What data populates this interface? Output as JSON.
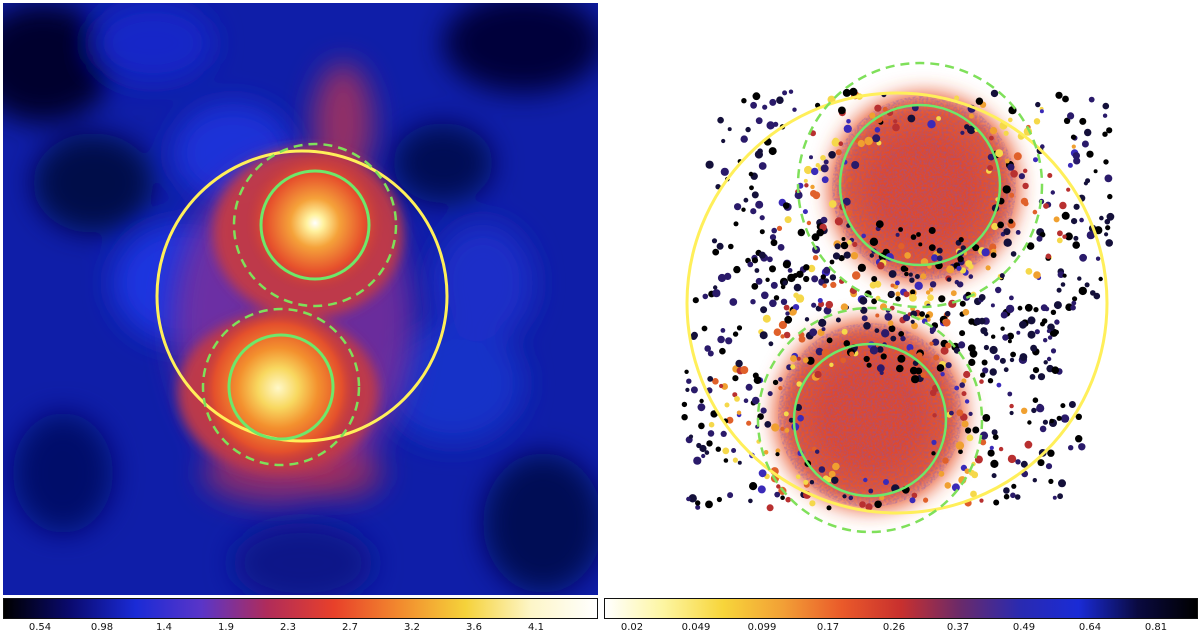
{
  "left_colorbar": {
    "ticks": [
      "0.54",
      "0.98",
      "1.4",
      "1.9",
      "2.3",
      "2.7",
      "3.2",
      "3.6",
      "4.1"
    ],
    "colormap": [
      "#000000",
      "#0a0a6e",
      "#1a2bd6",
      "#5a35c8",
      "#b02c5a",
      "#e8402a",
      "#f28a2e",
      "#f5d23a",
      "#fdf6c8",
      "#ffffff"
    ]
  },
  "right_colorbar": {
    "ticks": [
      "0.02",
      "0.049",
      "0.099",
      "0.17",
      "0.26",
      "0.37",
      "0.49",
      "0.64",
      "0.81"
    ],
    "colormap": [
      "#ffffff",
      "#fdf5a0",
      "#f7d53a",
      "#f2a036",
      "#ea5a2a",
      "#c8302e",
      "#6a2a6a",
      "#2a2ab0",
      "#1a2bd6",
      "#0a0a40",
      "#000000"
    ]
  },
  "colors": {
    "yellow_circle": "#ffef5a",
    "green_circle": "#6ee86a",
    "dashed_circle": "#7fe05a"
  }
}
